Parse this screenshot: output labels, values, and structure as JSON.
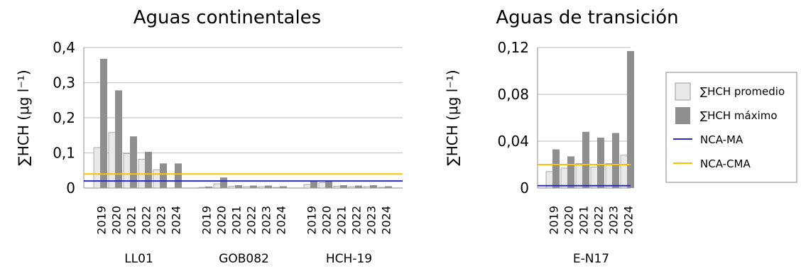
{
  "colors": {
    "promedio_fill": "#e9e9e9",
    "promedio_stroke": "#9a9a9a",
    "maximo_fill": "#8f8f8f",
    "nca_ma": "#2a2ad0",
    "nca_cma": "#ffc000",
    "grid": "#c8c8c8",
    "axis": "#a0a0a0"
  },
  "legend": {
    "items": [
      {
        "label": "∑HCH promedio",
        "kind": "box-promedio"
      },
      {
        "label": "∑HCH máximo",
        "kind": "box-maximo"
      },
      {
        "label": "NCA-MA",
        "kind": "line-ma"
      },
      {
        "label": "NCA-CMA",
        "kind": "line-cma"
      }
    ]
  },
  "chart_data": [
    {
      "type": "bar",
      "title": "Aguas continentales",
      "ylabel": "∑HCH (μg l⁻¹)",
      "ylim": [
        0,
        0.4
      ],
      "yticks": [
        "0",
        "0,1",
        "0,2",
        "0,3",
        "0,4"
      ],
      "ytick_values": [
        0,
        0.1,
        0.2,
        0.3,
        0.4
      ],
      "grid": true,
      "nca_ma": 0.02,
      "nca_cma": 0.04,
      "groups": [
        {
          "name": "LL01",
          "years": [
            "2019",
            "2020",
            "2021",
            "2022",
            "2023",
            "2024"
          ],
          "promedio": [
            0.115,
            0.158,
            0.098,
            0.082,
            0.052,
            null
          ],
          "maximo": [
            0.368,
            0.278,
            0.147,
            0.103,
            0.07,
            0.07
          ]
        },
        {
          "name": "GOB082",
          "years": [
            "2019",
            "2020",
            "2021",
            "2022",
            "2023",
            "2024"
          ],
          "promedio": [
            0.002,
            0.012,
            0.005,
            0.004,
            0.004,
            0.002
          ],
          "maximo": [
            0.004,
            0.03,
            0.008,
            0.007,
            0.007,
            0.005
          ]
        },
        {
          "name": "HCH-19",
          "years": [
            "2019",
            "2020",
            "2021",
            "2022",
            "2023",
            "2024"
          ],
          "promedio": [
            0.01,
            0.015,
            0.005,
            0.004,
            0.004,
            0.002
          ],
          "maximo": [
            0.02,
            0.02,
            0.008,
            0.007,
            0.008,
            0.005
          ]
        }
      ]
    },
    {
      "type": "bar",
      "title": "Aguas de transición",
      "ylabel": "∑HCH (μg l⁻¹)",
      "ylim": [
        0,
        0.12
      ],
      "yticks": [
        "0",
        "0,04",
        "0,08",
        "0,12"
      ],
      "ytick_values": [
        0,
        0.04,
        0.08,
        0.12
      ],
      "grid": true,
      "nca_ma": 0.002,
      "nca_cma": 0.02,
      "groups": [
        {
          "name": "E-N17",
          "years": [
            "2019",
            "2020",
            "2021",
            "2022",
            "2023",
            "2024"
          ],
          "promedio": [
            0.014,
            0.017,
            0.021,
            0.018,
            0.021,
            0.028
          ],
          "maximo": [
            0.033,
            0.027,
            0.048,
            0.043,
            0.047,
            0.117
          ]
        }
      ]
    }
  ]
}
